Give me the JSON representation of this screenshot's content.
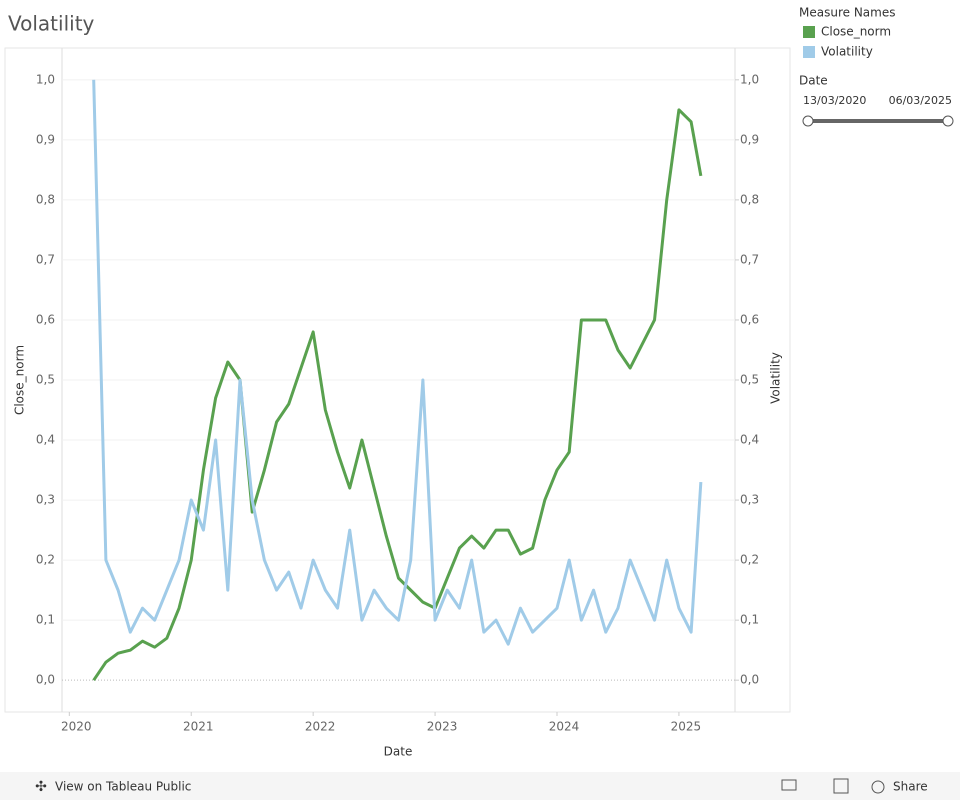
{
  "chart_data": {
    "type": "line",
    "title": "Volatility",
    "legend_title": "Measure Names",
    "filter_title": "Date",
    "filter_start": "13/03/2020",
    "filter_end": "06/03/2025",
    "x_label": "Date",
    "y_label": "Close_norm",
    "y2_label": "Volatility",
    "footer_link": "View on Tableau Public",
    "footer_share": "Share",
    "x": [
      2020.2,
      2020.3,
      2020.4,
      2020.5,
      2020.6,
      2020.7,
      2020.8,
      2020.9,
      2021.0,
      2021.1,
      2021.2,
      2021.3,
      2021.4,
      2021.5,
      2021.6,
      2021.7,
      2021.8,
      2021.9,
      2022.0,
      2022.1,
      2022.2,
      2022.3,
      2022.4,
      2022.5,
      2022.6,
      2022.7,
      2022.8,
      2022.9,
      2023.0,
      2023.1,
      2023.2,
      2023.3,
      2023.4,
      2023.5,
      2023.6,
      2023.7,
      2023.8,
      2023.9,
      2024.0,
      2024.1,
      2024.2,
      2024.3,
      2024.4,
      2024.5,
      2024.6,
      2024.7,
      2024.8,
      2024.9,
      2025.0,
      2025.1,
      2025.18
    ],
    "xlim": [
      2019.94,
      2025.46
    ],
    "xticks": [
      2020,
      2021,
      2022,
      2023,
      2024,
      2025
    ],
    "ylim": [
      -0.053,
      1.053
    ],
    "yticks": [
      {
        "value": 0,
        "label": "0,0"
      },
      {
        "value": 0.1,
        "label": "0,1"
      },
      {
        "value": 0.2,
        "label": "0,2"
      },
      {
        "value": 0.3,
        "label": "0,3"
      },
      {
        "value": 0.4,
        "label": "0,4"
      },
      {
        "value": 0.5,
        "label": "0,5"
      },
      {
        "value": 0.6,
        "label": "0,6"
      },
      {
        "value": 0.7,
        "label": "0,7"
      },
      {
        "value": 0.8,
        "label": "0,8"
      },
      {
        "value": 0.9,
        "label": "0,9"
      },
      {
        "value": 1,
        "label": "1,0"
      }
    ],
    "y2lim": [
      -0.053,
      1.053
    ],
    "y2ticks": [
      {
        "value": 0,
        "label": "0,0"
      },
      {
        "value": 0.1,
        "label": "0,1"
      },
      {
        "value": 0.2,
        "label": "0,2"
      },
      {
        "value": 0.3,
        "label": "0,3"
      },
      {
        "value": 0.4,
        "label": "0,4"
      },
      {
        "value": 0.5,
        "label": "0,5"
      },
      {
        "value": 0.6,
        "label": "0,6"
      },
      {
        "value": 0.7,
        "label": "0,7"
      },
      {
        "value": 0.8,
        "label": "0,8"
      },
      {
        "value": 0.9,
        "label": "0,9"
      },
      {
        "value": 1,
        "label": "1,0"
      }
    ],
    "grid": true,
    "series": [
      {
        "name": "Close_norm",
        "color": "#59a14f",
        "values": [
          0.0,
          0.03,
          0.045,
          0.05,
          0.065,
          0.055,
          0.07,
          0.12,
          0.2,
          0.35,
          0.47,
          0.53,
          0.5,
          0.28,
          0.35,
          0.43,
          0.46,
          0.52,
          0.58,
          0.45,
          0.38,
          0.32,
          0.4,
          0.32,
          0.24,
          0.17,
          0.15,
          0.13,
          0.12,
          0.17,
          0.22,
          0.24,
          0.22,
          0.25,
          0.25,
          0.21,
          0.22,
          0.3,
          0.35,
          0.38,
          0.6,
          0.6,
          0.6,
          0.55,
          0.52,
          0.56,
          0.6,
          0.8,
          0.95,
          0.93,
          0.84
        ]
      },
      {
        "name": "Volatility",
        "color": "#a0cbe8",
        "axis": "y2",
        "values": [
          1.0,
          0.2,
          0.15,
          0.08,
          0.12,
          0.1,
          0.15,
          0.2,
          0.3,
          0.25,
          0.4,
          0.15,
          0.5,
          0.3,
          0.2,
          0.15,
          0.18,
          0.12,
          0.2,
          0.15,
          0.12,
          0.25,
          0.1,
          0.15,
          0.12,
          0.1,
          0.2,
          0.5,
          0.1,
          0.15,
          0.12,
          0.2,
          0.08,
          0.1,
          0.06,
          0.12,
          0.08,
          0.1,
          0.12,
          0.2,
          0.1,
          0.15,
          0.08,
          0.12,
          0.2,
          0.15,
          0.1,
          0.2,
          0.12,
          0.08,
          0.33
        ]
      }
    ]
  }
}
